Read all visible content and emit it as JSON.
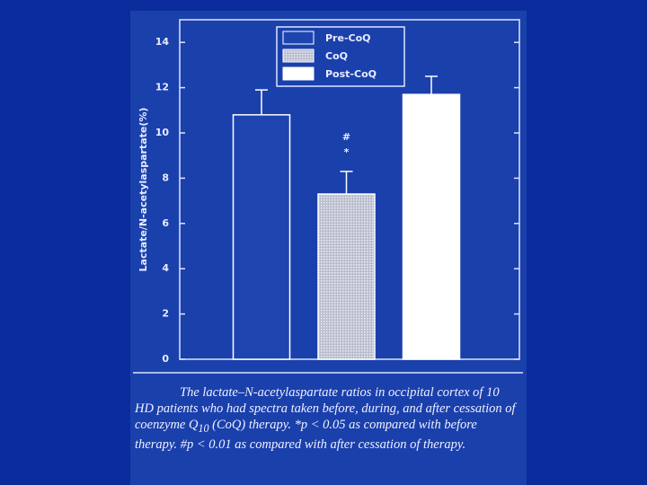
{
  "chart_data": {
    "type": "bar",
    "y_label": "Lactate/N-acetylaspartate(%)",
    "series": [
      {
        "name": "Pre-CoQ",
        "color": "#1e44b0",
        "values": [
          10.8
        ],
        "errors": [
          1.1
        ]
      },
      {
        "name": "CoQ",
        "color": "#c8c8d8",
        "values": [
          7.3
        ],
        "errors": [
          1.0
        ]
      },
      {
        "name": "Post-CoQ",
        "color": "#ffffff",
        "values": [
          11.7
        ],
        "errors": [
          0.8
        ]
      }
    ],
    "annotations": [
      "#",
      "*"
    ],
    "ylim": [
      0,
      15
    ],
    "yticks": [
      0,
      2,
      4,
      6,
      8,
      10,
      12,
      14
    ],
    "caption": [
      "The lactate–N-acetylaspartate ratios in occipital cortex of 10 HD patients who had spectra taken before, during, and after cessation of coenzyme Q",
      "10",
      " (CoQ) therapy. *p < 0.05 as compared with before therapy. #p < 0.01 as compared with after cessation of therapy."
    ]
  }
}
